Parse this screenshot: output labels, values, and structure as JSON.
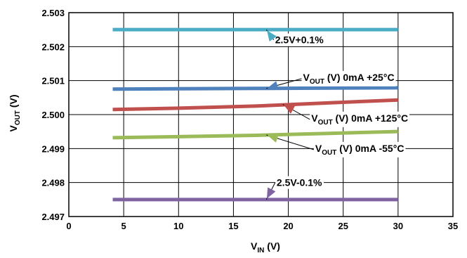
{
  "chart_data": {
    "type": "line",
    "xlabel": {
      "main": "V",
      "sub": "IN",
      "tail": " (V)"
    },
    "ylabel": {
      "main": "V",
      "sub": "OUT",
      "tail": " (V)"
    },
    "xlim": [
      0,
      35
    ],
    "ylim": [
      2.497,
      2.503
    ],
    "xticks": [
      "0",
      "5",
      "10",
      "15",
      "20",
      "25",
      "30",
      "35"
    ],
    "yticks": [
      "2.497",
      "2.498",
      "2.499",
      "2.500",
      "2.501",
      "2.502",
      "2.503"
    ],
    "grid": true,
    "series": [
      {
        "color": "#4bacc6",
        "x": [
          4,
          30
        ],
        "y": [
          2.5025,
          2.5025
        ]
      },
      {
        "color": "#4f81bd",
        "x": [
          4,
          10,
          17,
          24,
          30
        ],
        "y": [
          2.50075,
          2.50076,
          2.50077,
          2.50078,
          2.50079
        ]
      },
      {
        "color": "#c0504d",
        "x": [
          4,
          10,
          17,
          24,
          30
        ],
        "y": [
          2.50015,
          2.50019,
          2.50025,
          2.50035,
          2.50043
        ]
      },
      {
        "color": "#9bbb59",
        "x": [
          4,
          10,
          17,
          24,
          30
        ],
        "y": [
          2.49932,
          2.49935,
          2.49939,
          2.49945,
          2.4995
        ]
      },
      {
        "color": "#8064a2",
        "x": [
          4,
          30
        ],
        "y": [
          2.4975,
          2.4975
        ]
      }
    ],
    "annotations": [
      {
        "text": "2.5V+0.1%",
        "color": "#4bacc6",
        "target": [
          18,
          2.5025
        ],
        "label_at": [
          21,
          2.5022
        ]
      },
      {
        "text_main": "V",
        "text_sub": "OUT",
        "text_tail": " (V) 0mA +25°C",
        "color": "#4f81bd",
        "target": [
          18,
          2.50077
        ],
        "label_at": [
          25.5,
          2.5011
        ]
      },
      {
        "text_main": "V",
        "text_sub": "OUT",
        "text_tail": " (V) 0mA +125°C",
        "color": "#c0504d",
        "target": [
          19.5,
          2.5003
        ],
        "label_at": [
          26.5,
          2.4999
        ]
      },
      {
        "text_main": "V",
        "text_sub": "OUT",
        "text_tail": " (V) 0mA -55°C",
        "color": "#9bbb59",
        "target": [
          18,
          2.4994
        ],
        "label_at": [
          26.5,
          2.49901
        ]
      },
      {
        "text": "2.5V-0.1%",
        "color": "#8064a2",
        "target": [
          18,
          2.4975
        ],
        "label_at": [
          21,
          2.498
        ]
      }
    ]
  }
}
